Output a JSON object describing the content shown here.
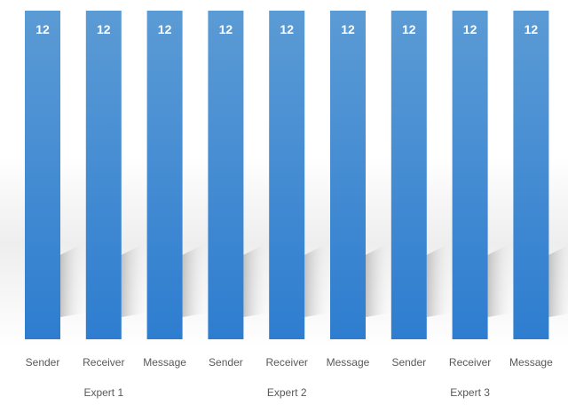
{
  "chart_data": {
    "type": "bar",
    "categories": [
      "Sender",
      "Receiver",
      "Message",
      "Sender",
      "Receiver",
      "Message",
      "Sender",
      "Receiver",
      "Message"
    ],
    "groups": [
      {
        "label": "Expert 1",
        "categories": [
          "Sender",
          "Receiver",
          "Message"
        ]
      },
      {
        "label": "Expert 2",
        "categories": [
          "Sender",
          "Receiver",
          "Message"
        ]
      },
      {
        "label": "Expert 3",
        "categories": [
          "Sender",
          "Receiver",
          "Message"
        ]
      }
    ],
    "values": [
      12,
      12,
      12,
      12,
      12,
      12,
      12,
      12,
      12
    ],
    "data_labels": [
      "12",
      "12",
      "12",
      "12",
      "12",
      "12",
      "12",
      "12",
      "12"
    ],
    "ylim": [
      0,
      12
    ],
    "grid": false,
    "legend": "none",
    "colors": {
      "bar_top": "#5b9bd5",
      "bar_bottom": "#2e7dd0",
      "data_label": "#ffffff",
      "axis_text": "#595959"
    }
  }
}
